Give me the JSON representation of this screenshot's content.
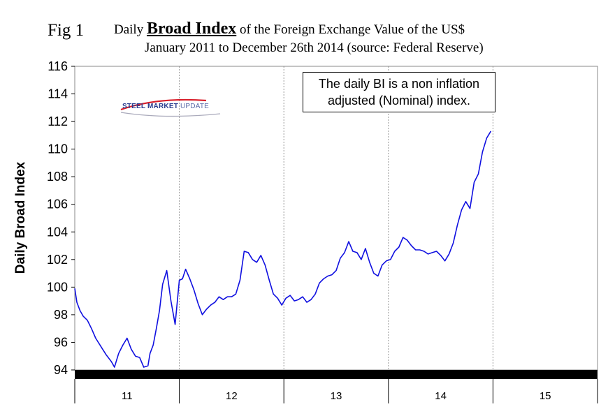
{
  "figure": {
    "label": "Fig 1",
    "title_prefix": "Daily",
    "title_emphasis": "Broad Index",
    "title_suffix": "of the Foreign Exchange Value of the US$",
    "subtitle": "January 2011 to December 26th 2014 (source: Federal Reserve)",
    "logo": {
      "text_bold": "STEEL MARKET",
      "text_light": "UPDATE",
      "colors": {
        "red": "#d81e2a",
        "blue": "#2a3d8f"
      }
    },
    "annotation_line1": "The daily BI is a non inflation",
    "annotation_line2": "adjusted (Nominal) index."
  },
  "chart_data": {
    "type": "line",
    "title": "Daily Broad Index of the Foreign Exchange Value of the US$",
    "ylabel": "Daily Broad Index",
    "xlabel": "",
    "ylim": [
      94,
      116
    ],
    "ytick_step": 2,
    "yticks": [
      "94",
      "96",
      "98",
      "100",
      "102",
      "104",
      "106",
      "108",
      "110",
      "112",
      "114",
      "116"
    ],
    "xlim": [
      2011.0,
      2016.0
    ],
    "year_labels": [
      "11",
      "12",
      "13",
      "14",
      "15"
    ],
    "grid": "vertical dashed at year boundaries",
    "line_color": "#1010e0",
    "series": [
      {
        "x": [
          2011.0,
          2011.02,
          2011.05,
          2011.08,
          2011.12,
          2011.16,
          2011.2,
          2011.25,
          2011.3,
          2011.35,
          2011.38,
          2011.42,
          2011.46,
          2011.5,
          2011.54,
          2011.58,
          2011.62,
          2011.66,
          2011.7,
          2011.72,
          2011.75,
          2011.78,
          2011.81,
          2011.84,
          2011.88,
          2011.92,
          2011.96,
          2012.0,
          2012.03,
          2012.06,
          2012.1,
          2012.14,
          2012.18,
          2012.22,
          2012.26,
          2012.3,
          2012.34,
          2012.38,
          2012.42,
          2012.46,
          2012.5,
          2012.54,
          2012.58,
          2012.62,
          2012.66,
          2012.7,
          2012.74,
          2012.78,
          2012.82,
          2012.86,
          2012.9,
          2012.94,
          2012.98,
          2013.02,
          2013.06,
          2013.1,
          2013.14,
          2013.18,
          2013.22,
          2013.26,
          2013.3,
          2013.34,
          2013.38,
          2013.42,
          2013.46,
          2013.5,
          2013.54,
          2013.58,
          2013.62,
          2013.66,
          2013.7,
          2013.74,
          2013.78,
          2013.82,
          2013.86,
          2013.9,
          2013.94,
          2013.98,
          2014.02,
          2014.06,
          2014.1,
          2014.14,
          2014.18,
          2014.22,
          2014.26,
          2014.3,
          2014.34,
          2014.38,
          2014.42,
          2014.46,
          2014.5,
          2014.54,
          2014.58,
          2014.62,
          2014.66,
          2014.7,
          2014.74,
          2014.78,
          2014.82,
          2014.86,
          2014.9,
          2014.94,
          2014.98
        ],
        "y": [
          99.9,
          98.9,
          98.3,
          97.9,
          97.6,
          97.0,
          96.3,
          95.7,
          95.1,
          94.6,
          94.2,
          95.2,
          95.8,
          96.3,
          95.5,
          95.0,
          94.9,
          94.2,
          94.3,
          95.2,
          95.8,
          97.0,
          98.3,
          100.2,
          101.2,
          99.0,
          97.3,
          100.5,
          100.6,
          101.3,
          100.6,
          99.8,
          98.8,
          98.0,
          98.4,
          98.7,
          98.9,
          99.3,
          99.1,
          99.3,
          99.3,
          99.5,
          100.5,
          102.6,
          102.5,
          102.0,
          101.8,
          102.3,
          101.6,
          100.5,
          99.5,
          99.2,
          98.7,
          99.2,
          99.4,
          99.0,
          99.1,
          99.3,
          98.9,
          99.1,
          99.5,
          100.3,
          100.6,
          100.8,
          100.9,
          101.2,
          102.1,
          102.5,
          103.3,
          102.6,
          102.5,
          102.0,
          102.8,
          101.8,
          101.0,
          100.8,
          101.6,
          101.9,
          102.0,
          102.6,
          102.9,
          103.6,
          103.4,
          103.0,
          102.7,
          102.7,
          102.6,
          102.4,
          102.5,
          102.6,
          102.3,
          101.9,
          102.4,
          103.2,
          104.5,
          105.6,
          106.2,
          105.7,
          107.6,
          108.2,
          109.8,
          110.8,
          111.3
        ]
      }
    ]
  }
}
